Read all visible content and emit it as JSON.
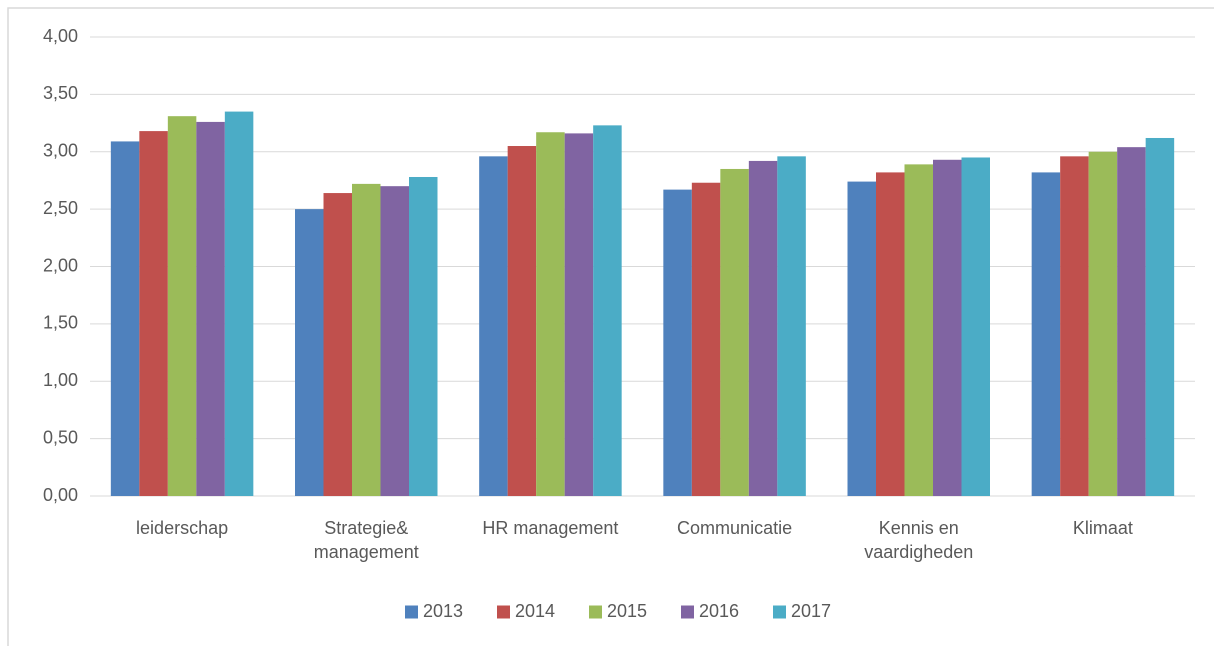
{
  "chart_data": {
    "type": "bar",
    "categories": [
      "leiderschap",
      "Strategie& management",
      "HR management",
      "Communicatie",
      "Kennis en vaardigheden",
      "Klimaat"
    ],
    "series": [
      {
        "name": "2013",
        "color": "#4f81bd",
        "values": [
          3.09,
          2.5,
          2.96,
          2.67,
          2.74,
          2.82
        ]
      },
      {
        "name": "2014",
        "color": "#c0504d",
        "values": [
          3.18,
          2.64,
          3.05,
          2.73,
          2.82,
          2.96
        ]
      },
      {
        "name": "2015",
        "color": "#9bbb59",
        "values": [
          3.31,
          2.72,
          3.17,
          2.85,
          2.89,
          3.0
        ]
      },
      {
        "name": "2016",
        "color": "#8064a2",
        "values": [
          3.26,
          2.7,
          3.16,
          2.92,
          2.93,
          3.04
        ]
      },
      {
        "name": "2017",
        "color": "#4bacc6",
        "values": [
          3.35,
          2.78,
          3.23,
          2.96,
          2.95,
          3.12
        ]
      }
    ],
    "ylim": [
      0,
      4
    ],
    "yticks": [
      {
        "value": 0,
        "label": "0,00"
      },
      {
        "value": 0.5,
        "label": "0,50"
      },
      {
        "value": 1,
        "label": "1,00"
      },
      {
        "value": 1.5,
        "label": "1,50"
      },
      {
        "value": 2,
        "label": "2,00"
      },
      {
        "value": 2.5,
        "label": "2,50"
      },
      {
        "value": 3,
        "label": "3,00"
      },
      {
        "value": 3.5,
        "label": "3,50"
      },
      {
        "value": 4,
        "label": "4,00"
      }
    ],
    "grid": true,
    "legend": "bottom"
  }
}
